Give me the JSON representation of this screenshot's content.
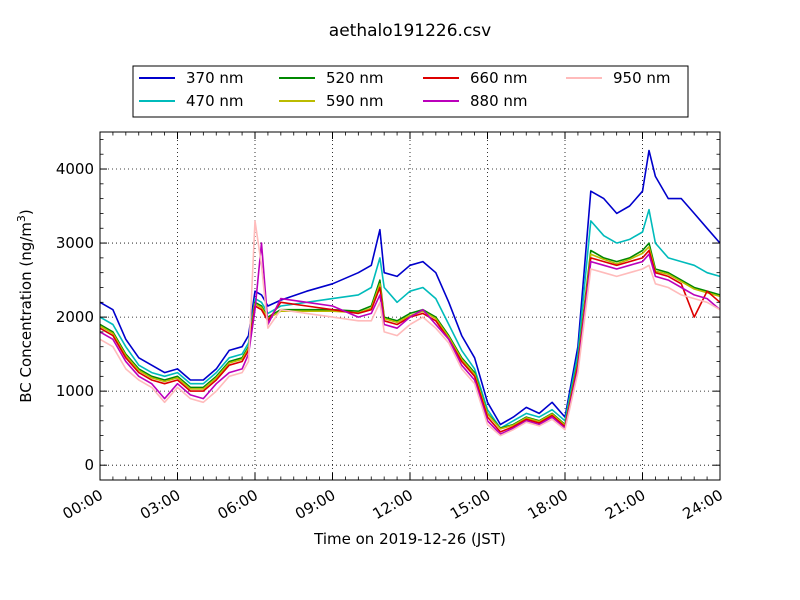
{
  "chart_data": {
    "type": "line",
    "title": "aethalo191226.csv",
    "xlabel": "Time on 2019-12-26 (JST)",
    "ylabel_main": "BC Concentration (ng/m",
    "ylabel_sup": "3",
    "ylabel_tail": ")",
    "xlim": [
      "00:00",
      "24:00"
    ],
    "ylim": [
      -200,
      4500
    ],
    "x_ticks": [
      "00:00",
      "03:00",
      "06:00",
      "09:00",
      "12:00",
      "15:00",
      "18:00",
      "21:00",
      "24:00"
    ],
    "y_ticks": [
      0,
      1000,
      2000,
      3000,
      4000
    ],
    "grid": true,
    "legend_position": "top-outside",
    "x": [
      "00:00",
      "00:30",
      "01:00",
      "01:30",
      "02:00",
      "02:30",
      "03:00",
      "03:30",
      "04:00",
      "04:30",
      "05:00",
      "05:30",
      "05:45",
      "06:00",
      "06:15",
      "06:30",
      "07:00",
      "08:00",
      "09:00",
      "10:00",
      "10:30",
      "10:50",
      "11:00",
      "11:30",
      "12:00",
      "12:30",
      "13:00",
      "13:30",
      "14:00",
      "14:30",
      "15:00",
      "15:30",
      "16:00",
      "16:30",
      "17:00",
      "17:30",
      "18:00",
      "18:30",
      "19:00",
      "19:30",
      "20:00",
      "20:30",
      "21:00",
      "21:15",
      "21:30",
      "22:00",
      "22:30",
      "23:00",
      "23:30",
      "24:00"
    ],
    "series": [
      {
        "name": "370 nm",
        "color": "#0000cc",
        "values": [
          2200,
          2100,
          1700,
          1450,
          1350,
          1250,
          1300,
          1150,
          1150,
          1300,
          1550,
          1600,
          1750,
          2350,
          2300,
          2150,
          2230,
          2350,
          2450,
          2600,
          2700,
          3180,
          2600,
          2550,
          2700,
          2750,
          2600,
          2200,
          1750,
          1450,
          850,
          550,
          650,
          780,
          700,
          850,
          650,
          1600,
          3700,
          3600,
          3400,
          3500,
          3700,
          4250,
          3900,
          3600,
          3600,
          3400,
          3200,
          3000
        ]
      },
      {
        "name": "470 nm",
        "color": "#00bbbb",
        "values": [
          2000,
          1900,
          1600,
          1350,
          1250,
          1200,
          1250,
          1100,
          1100,
          1250,
          1450,
          1500,
          1650,
          2250,
          2200,
          2050,
          2150,
          2200,
          2250,
          2300,
          2400,
          2800,
          2400,
          2200,
          2350,
          2400,
          2250,
          1900,
          1550,
          1300,
          750,
          500,
          600,
          700,
          650,
          750,
          600,
          1500,
          3300,
          3100,
          3000,
          3050,
          3150,
          3450,
          3000,
          2800,
          2750,
          2700,
          2600,
          2550
        ]
      },
      {
        "name": "520 nm",
        "color": "#008800",
        "values": [
          1900,
          1800,
          1500,
          1300,
          1200,
          1150,
          1200,
          1050,
          1050,
          1200,
          1400,
          1450,
          1600,
          2200,
          2150,
          2000,
          2100,
          2100,
          2100,
          2080,
          2150,
          2500,
          2000,
          1950,
          2050,
          2100,
          2000,
          1750,
          1450,
          1250,
          700,
          500,
          550,
          650,
          600,
          700,
          550,
          1400,
          2900,
          2800,
          2750,
          2800,
          2900,
          3000,
          2650,
          2600,
          2500,
          2400,
          2350,
          2300
        ]
      },
      {
        "name": "590 nm",
        "color": "#bbbb00",
        "values": [
          1880,
          1780,
          1480,
          1280,
          1180,
          1130,
          1180,
          1030,
          1030,
          1180,
          1380,
          1430,
          1580,
          2180,
          2130,
          1980,
          2080,
          2080,
          2080,
          2060,
          2120,
          2450,
          1980,
          1930,
          2020,
          2080,
          1980,
          1730,
          1430,
          1230,
          690,
          490,
          540,
          640,
          590,
          690,
          540,
          1380,
          2850,
          2780,
          2720,
          2780,
          2860,
          2950,
          2620,
          2580,
          2480,
          2380,
          2330,
          2280
        ]
      },
      {
        "name": "660 nm",
        "color": "#dd0000",
        "values": [
          1850,
          1750,
          1450,
          1250,
          1150,
          1100,
          1150,
          1000,
          1000,
          1150,
          1350,
          1400,
          1550,
          2150,
          2100,
          1950,
          2200,
          2150,
          2100,
          2050,
          2100,
          2400,
          1950,
          1900,
          2000,
          2050,
          1950,
          1700,
          1400,
          1200,
          650,
          450,
          520,
          620,
          570,
          670,
          520,
          1350,
          2800,
          2750,
          2700,
          2750,
          2800,
          2900,
          2600,
          2550,
          2450,
          2000,
          2350,
          2200
        ]
      },
      {
        "name": "880 nm",
        "color": "#bb00bb",
        "values": [
          1800,
          1700,
          1400,
          1200,
          1100,
          900,
          1100,
          950,
          900,
          1100,
          1250,
          1300,
          1500,
          2100,
          3000,
          1900,
          2250,
          2200,
          2150,
          2000,
          2050,
          2300,
          1900,
          1850,
          2000,
          2100,
          1900,
          1700,
          1350,
          1150,
          600,
          420,
          500,
          600,
          550,
          650,
          500,
          1300,
          2750,
          2700,
          2650,
          2700,
          2750,
          2850,
          2550,
          2500,
          2400,
          2300,
          2250,
          2100
        ]
      },
      {
        "name": "950 nm",
        "color": "#ffbbbb",
        "values": [
          1700,
          1600,
          1300,
          1150,
          1050,
          850,
          1050,
          900,
          850,
          1000,
          1200,
          1250,
          1400,
          3300,
          2700,
          1850,
          2100,
          2050,
          2000,
          1950,
          1950,
          2200,
          1800,
          1750,
          1900,
          2000,
          1850,
          1650,
          1300,
          1100,
          550,
          400,
          480,
          580,
          530,
          620,
          480,
          1250,
          2650,
          2600,
          2550,
          2600,
          2650,
          2700,
          2450,
          2400,
          2300,
          2250,
          2200,
          2100
        ]
      }
    ]
  }
}
